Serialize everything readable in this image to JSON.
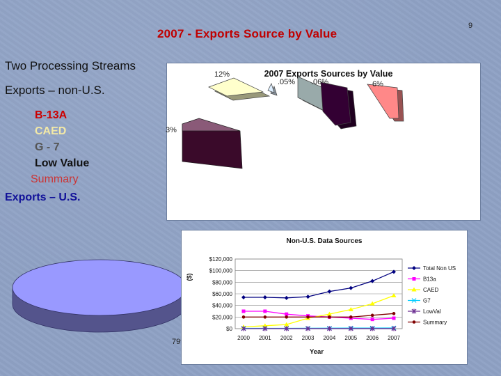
{
  "page_number": "9",
  "slide_title": "2007 - Exports Source by Value",
  "bullets": {
    "streams": "Two Processing Streams",
    "non_us": "Exports – non-U.S.",
    "b13a": "B-13A",
    "caed": "CAED",
    "g7": "G - 7",
    "lowvalue": "Low Value",
    "summary": "Summary",
    "us": "Exports – U.S."
  },
  "colors": {
    "title": "#c00000",
    "b13a": "#cc0000",
    "caed": "#f0e6a0",
    "g7": "#555555",
    "lowvalue": "#111111",
    "summary": "#cc3333",
    "us": "#111199"
  },
  "chart_data": [
    {
      "type": "pie",
      "title": "2007 Exports Sources by Value",
      "slices": [
        {
          "label": "79%",
          "value": 79,
          "color": "#9999ff"
        },
        {
          "label": "12%",
          "value": 12,
          "color": "#ffffcc"
        },
        {
          "label": ".05%",
          "value": 0.05,
          "color": "#ddeeff"
        },
        {
          "label": ".06%",
          "value": 0.06,
          "color": "#99aaaa"
        },
        {
          "label": "6%",
          "value": 6,
          "color": "#330033"
        },
        {
          "label": "3%",
          "value": 3,
          "color": "#ff8888"
        }
      ]
    },
    {
      "type": "line",
      "title": "Non-U.S. Data Sources",
      "xlabel": "Year",
      "ylabel": "($)",
      "x": [
        "2000",
        "2001",
        "2002",
        "2003",
        "2004",
        "2005",
        "2006",
        "2007"
      ],
      "ylim": [
        0,
        120000
      ],
      "yticks": [
        "$0",
        "$20,000",
        "$40,000",
        "$60,000",
        "$80,000",
        "$100,000",
        "$120,000"
      ],
      "series": [
        {
          "name": "Total Non US",
          "color": "#000080",
          "marker": "diamond",
          "values": [
            54000,
            54000,
            53000,
            55000,
            64000,
            70000,
            82000,
            98000
          ]
        },
        {
          "name": "B13a",
          "color": "#ff00ff",
          "marker": "square",
          "values": [
            30000,
            30000,
            25000,
            22000,
            20000,
            18000,
            16000,
            18000
          ]
        },
        {
          "name": "CAED",
          "color": "#ffff00",
          "marker": "triangle",
          "values": [
            3000,
            5000,
            7000,
            18000,
            25000,
            33000,
            43000,
            57000
          ]
        },
        {
          "name": "G7",
          "color": "#00ccff",
          "marker": "x",
          "values": [
            500,
            500,
            600,
            700,
            800,
            1000,
            1000,
            1200
          ]
        },
        {
          "name": "LowVal",
          "color": "#6a2c91",
          "marker": "star",
          "values": [
            0,
            100,
            100,
            100,
            100,
            100,
            100,
            100
          ]
        },
        {
          "name": "Summary",
          "color": "#800000",
          "marker": "circle",
          "values": [
            20000,
            20000,
            20000,
            20000,
            20000,
            20000,
            23000,
            26000
          ]
        }
      ]
    }
  ]
}
